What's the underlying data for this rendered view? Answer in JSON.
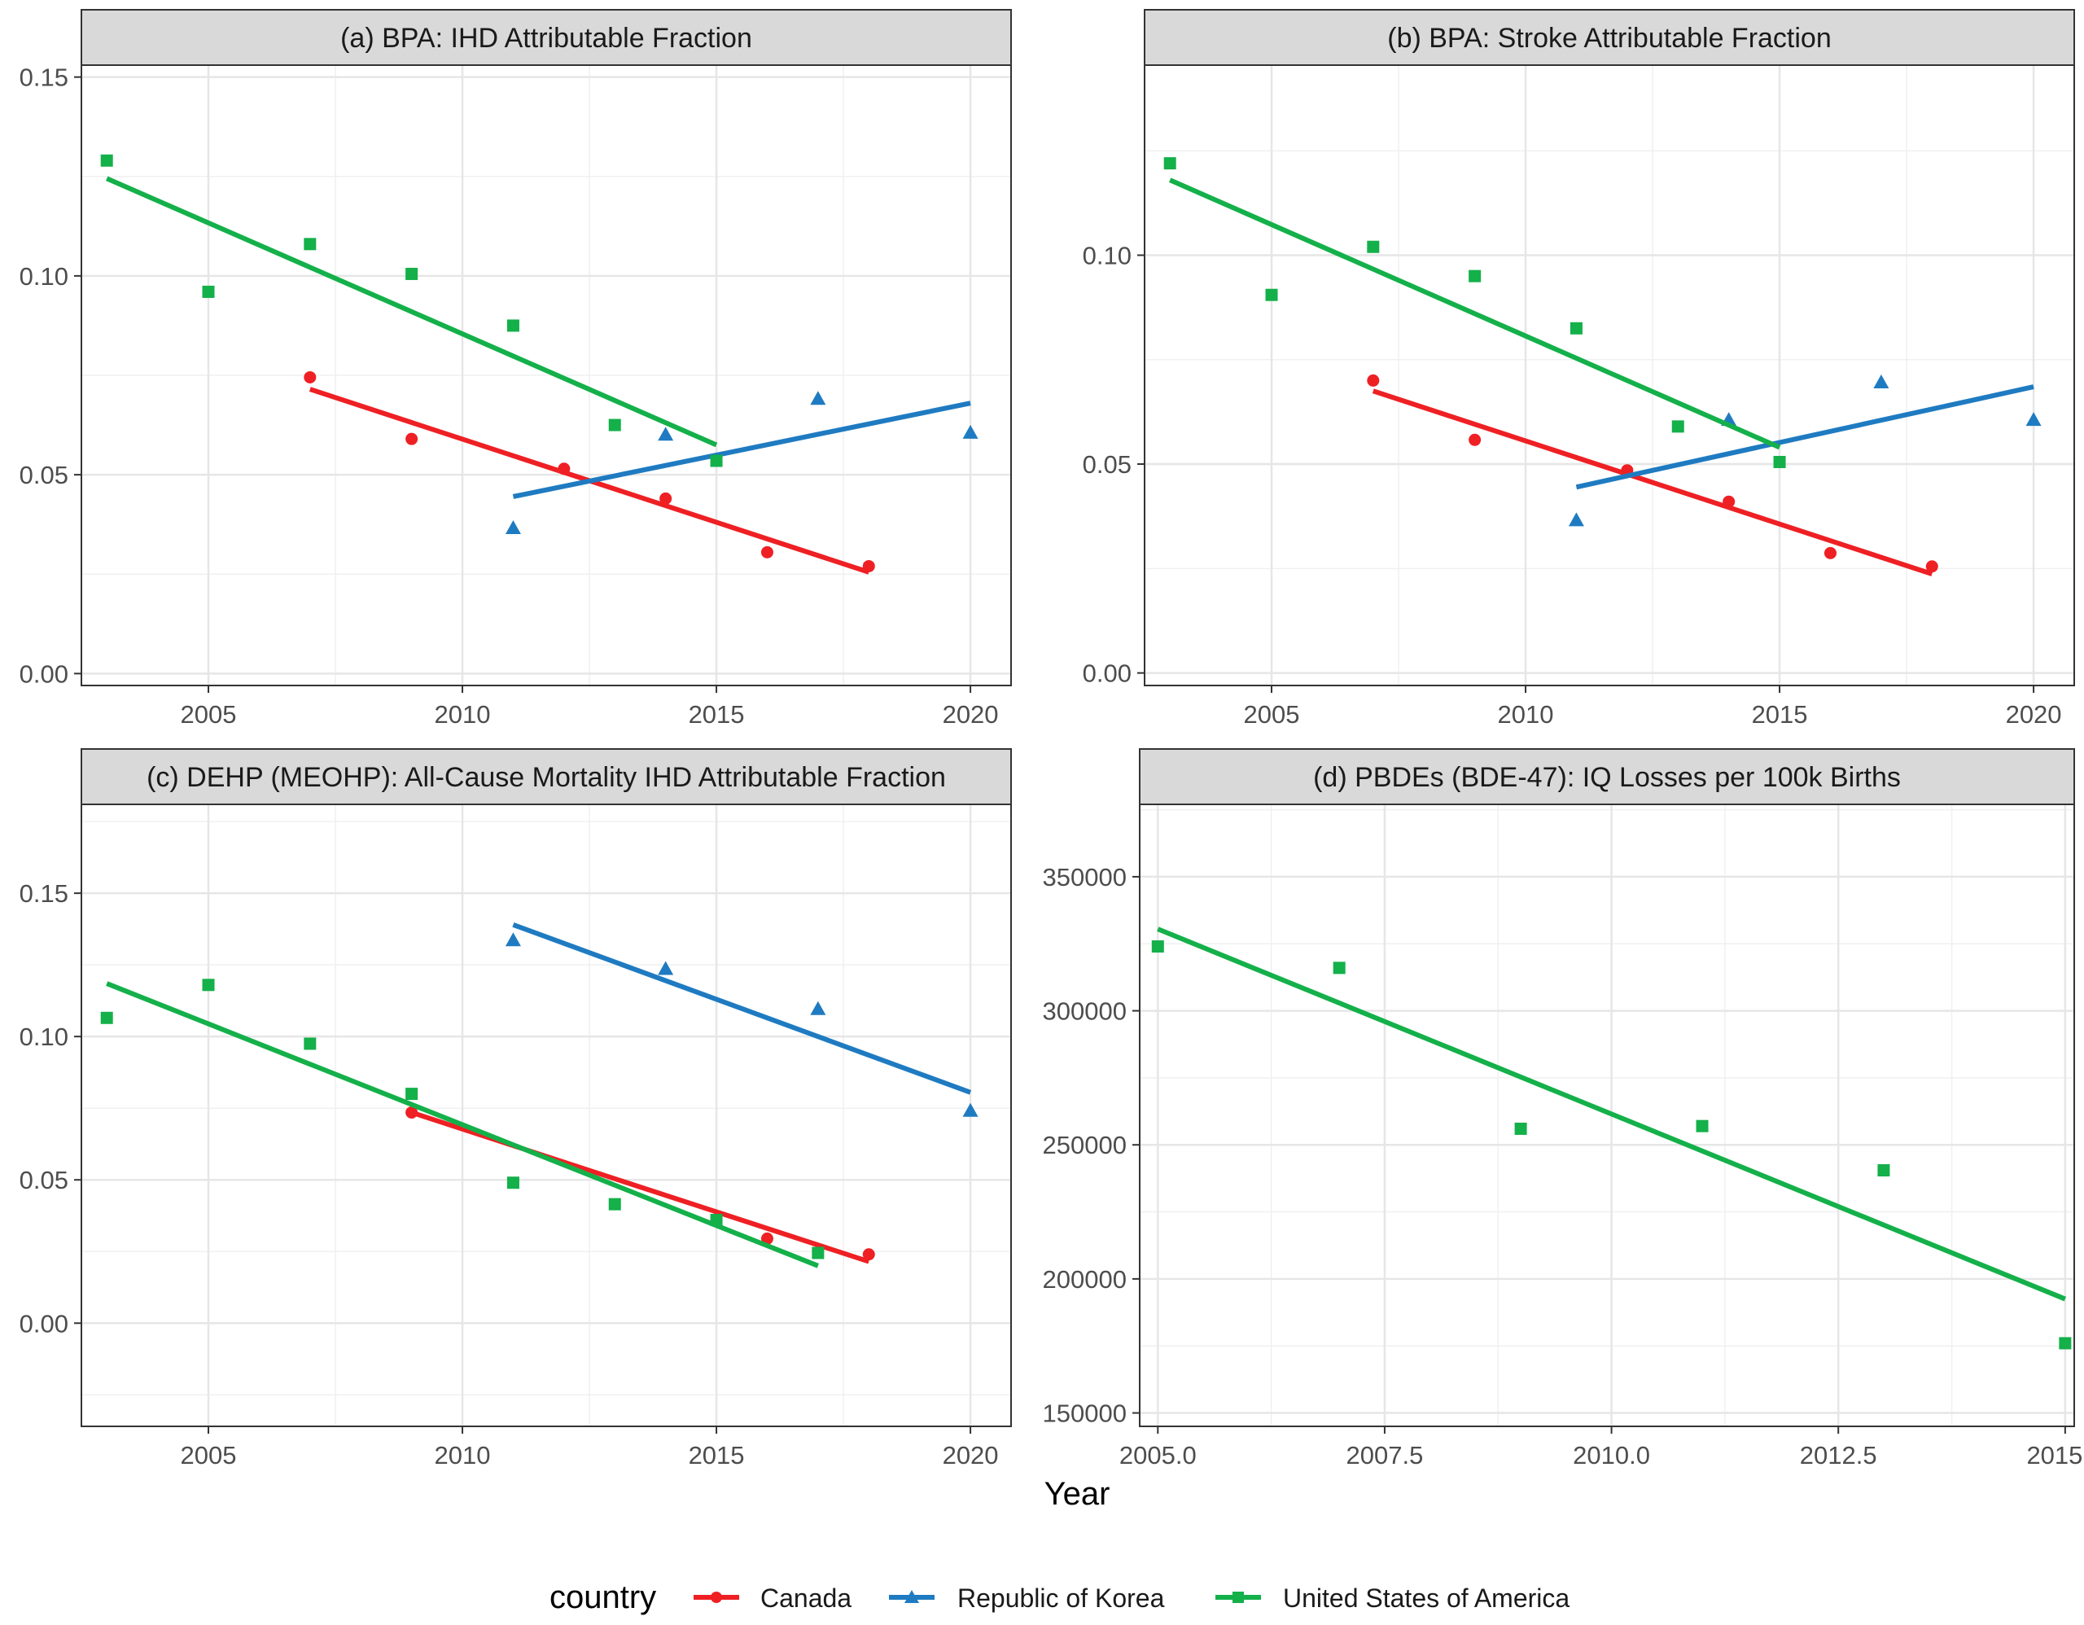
{
  "figure": {
    "xlabel": "Year",
    "legend": {
      "title": "country",
      "position": "bottom",
      "entries": [
        {
          "label": "Canada",
          "color": "#EE2024",
          "shape": "circle"
        },
        {
          "label": "Republic of Korea",
          "color": "#1F7BC1",
          "shape": "triangle"
        },
        {
          "label": "United States of America",
          "color": "#14B04A",
          "shape": "square"
        }
      ]
    }
  },
  "chart_data": [
    {
      "type": "scatter",
      "title": "(a) BPA: IHD Attributable Fraction",
      "grid": true,
      "xlim": [
        2002.5,
        2020.8
      ],
      "ylim": [
        -0.003,
        0.153
      ],
      "xticks": [
        2005,
        2010,
        2015,
        2020
      ],
      "xtick_labels": [
        "2005",
        "2010",
        "2015",
        "2020"
      ],
      "yticks": [
        0,
        0.05,
        0.1,
        0.15
      ],
      "ytick_labels": [
        "0.00",
        "0.05",
        "0.10",
        "0.15"
      ],
      "series": [
        {
          "name": "Canada",
          "color": "#EE2024",
          "shape": "circle",
          "x": [
            2007,
            2009,
            2012,
            2014,
            2016,
            2018
          ],
          "y": [
            0.0745,
            0.059,
            0.0515,
            0.044,
            0.0305,
            0.027
          ],
          "fit": [
            [
              2007,
              0.0715
            ],
            [
              2018,
              0.0255
            ]
          ]
        },
        {
          "name": "Republic of Korea",
          "color": "#1F7BC1",
          "shape": "triangle",
          "x": [
            2011,
            2014,
            2017,
            2020
          ],
          "y": [
            0.0365,
            0.06,
            0.069,
            0.0605
          ],
          "fit": [
            [
              2011,
              0.0445
            ],
            [
              2020,
              0.068
            ]
          ]
        },
        {
          "name": "United States of America",
          "color": "#14B04A",
          "shape": "square",
          "x": [
            2003,
            2005,
            2007,
            2009,
            2011,
            2013,
            2015
          ],
          "y": [
            0.129,
            0.096,
            0.108,
            0.1005,
            0.0875,
            0.0625,
            0.0535
          ],
          "fit": [
            [
              2003,
              0.1245
            ],
            [
              2015,
              0.0575
            ]
          ]
        }
      ]
    },
    {
      "type": "scatter",
      "title": "(b) BPA: Stroke Attributable Fraction",
      "grid": true,
      "xlim": [
        2002.5,
        2020.8
      ],
      "ylim": [
        -0.003,
        0.1455
      ],
      "xticks": [
        2005,
        2010,
        2015,
        2020
      ],
      "xtick_labels": [
        "2005",
        "2010",
        "2015",
        "2020"
      ],
      "yticks": [
        0,
        0.05,
        0.1
      ],
      "ytick_labels": [
        "0.00",
        "0.05",
        "0.10"
      ],
      "series": [
        {
          "name": "Canada",
          "color": "#EE2024",
          "shape": "circle",
          "x": [
            2007,
            2009,
            2012,
            2014,
            2016,
            2018
          ],
          "y": [
            0.07,
            0.0558,
            0.0485,
            0.041,
            0.0287,
            0.0255
          ],
          "fit": [
            [
              2007,
              0.0675
            ],
            [
              2018,
              0.0237
            ]
          ]
        },
        {
          "name": "Republic of Korea",
          "color": "#1F7BC1",
          "shape": "triangle",
          "x": [
            2011,
            2014,
            2017,
            2020
          ],
          "y": [
            0.0365,
            0.0605,
            0.0695,
            0.0605
          ],
          "fit": [
            [
              2011,
              0.0445
            ],
            [
              2020,
              0.0685
            ]
          ]
        },
        {
          "name": "United States of America",
          "color": "#14B04A",
          "shape": "square",
          "x": [
            2003,
            2005,
            2007,
            2009,
            2011,
            2013,
            2015
          ],
          "y": [
            0.122,
            0.0905,
            0.102,
            0.095,
            0.0825,
            0.059,
            0.0505
          ],
          "fit": [
            [
              2003,
              0.118
            ],
            [
              2015,
              0.054
            ]
          ]
        }
      ]
    },
    {
      "type": "scatter",
      "title": "(c) DEHP (MEOHP): All-Cause Mortality IHD Attributable Fraction",
      "grid": true,
      "xlim": [
        2002.5,
        2020.8
      ],
      "ylim": [
        -0.036,
        0.181
      ],
      "xticks": [
        2005,
        2010,
        2015,
        2020
      ],
      "xtick_labels": [
        "2005",
        "2010",
        "2015",
        "2020"
      ],
      "yticks": [
        0,
        0.05,
        0.1,
        0.15
      ],
      "ytick_labels": [
        "0.00",
        "0.05",
        "0.10",
        "0.15"
      ],
      "series": [
        {
          "name": "Canada",
          "color": "#EE2024",
          "shape": "circle",
          "x": [
            2009,
            2016,
            2018
          ],
          "y": [
            0.0735,
            0.0295,
            0.024
          ],
          "fit": [
            [
              2009,
              0.0735
            ],
            [
              2018,
              0.0215
            ]
          ]
        },
        {
          "name": "Republic of Korea",
          "color": "#1F7BC1",
          "shape": "triangle",
          "x": [
            2011,
            2014,
            2017,
            2020
          ],
          "y": [
            0.1335,
            0.1235,
            0.1095,
            0.074
          ],
          "fit": [
            [
              2011,
              0.139
            ],
            [
              2020,
              0.0805
            ]
          ]
        },
        {
          "name": "United States of America",
          "color": "#14B04A",
          "shape": "square",
          "x": [
            2003,
            2005,
            2007,
            2009,
            2011,
            2013,
            2015,
            2017
          ],
          "y": [
            0.1065,
            0.118,
            0.0975,
            0.08,
            0.049,
            0.0415,
            0.036,
            0.0245
          ],
          "fit": [
            [
              2003,
              0.1185
            ],
            [
              2017,
              0.02
            ]
          ]
        }
      ]
    },
    {
      "type": "scatter",
      "title": "(d) PBDEs (BDE-47): IQ Losses per 100k Births",
      "grid": true,
      "xlim": [
        2004.8,
        2015.1
      ],
      "ylim": [
        145000,
        377000
      ],
      "xticks": [
        2005,
        2007.5,
        2010,
        2012.5,
        2015
      ],
      "xtick_labels": [
        "2005.0",
        "2007.5",
        "2010.0",
        "2012.5",
        "2015.0"
      ],
      "yticks": [
        150000,
        200000,
        250000,
        300000,
        350000
      ],
      "ytick_labels": [
        "150000",
        "200000",
        "250000",
        "300000",
        "350000"
      ],
      "series": [
        {
          "name": "United States of America",
          "color": "#14B04A",
          "shape": "square",
          "x": [
            2005,
            2007,
            2009,
            2011,
            2013,
            2015
          ],
          "y": [
            324000,
            316000,
            256000,
            257000,
            240500,
            176000
          ],
          "fit": [
            [
              2005,
              330500
            ],
            [
              2015,
              192500
            ]
          ]
        }
      ]
    }
  ]
}
